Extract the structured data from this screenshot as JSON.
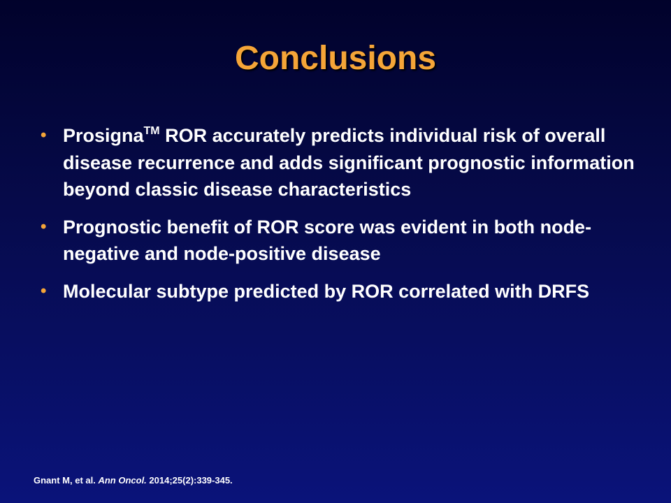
{
  "slide": {
    "title": "Conclusions",
    "bullet_glyph": "•",
    "bullets": [
      {
        "lead": "Prosigna",
        "superscript": "TM",
        "text": " ROR accurately predicts individual risk of overall disease recurrence and adds significant prognostic information beyond classic disease characteristics"
      },
      {
        "text": "Prognostic benefit of ROR score was evident in both node-negative and node-positive disease"
      },
      {
        "text": "Molecular subtype predicted by ROR correlated with DRFS"
      }
    ],
    "footnote": {
      "authors": "Gnant M, et al. ",
      "journal": "Ann Oncol.",
      "citation": " 2014;25(2):339-345."
    }
  },
  "colors": {
    "title": "#f5a538",
    "bullet": "#f5a538",
    "text": "#ffffff",
    "background_top": "#01022b",
    "background_bottom": "#0a137a"
  }
}
